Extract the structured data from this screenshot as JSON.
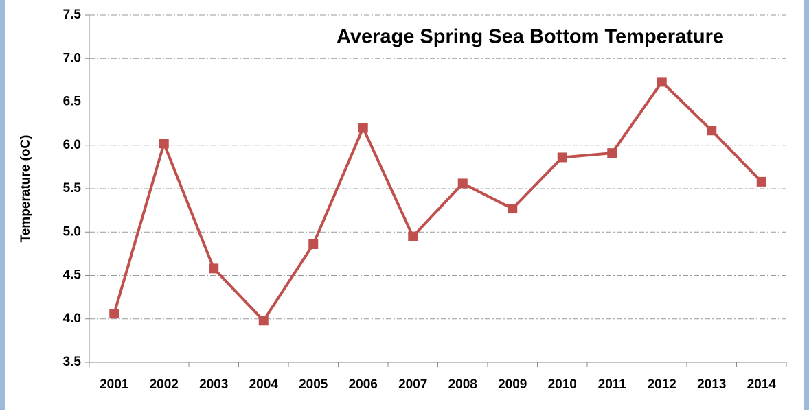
{
  "chart_data": {
    "type": "line",
    "title": "Average Spring Sea Bottom Temperature",
    "y_label": "Temperature (oC)",
    "categories": [
      "2001",
      "2002",
      "2003",
      "2004",
      "2005",
      "2006",
      "2007",
      "2008",
      "2009",
      "2010",
      "2011",
      "2012",
      "2013",
      "2014"
    ],
    "series": [
      {
        "name": "Average Spring Sea Bottom Temperature",
        "color": "#c0504d",
        "values": [
          4.06,
          6.02,
          4.58,
          3.98,
          4.86,
          6.2,
          4.95,
          5.56,
          5.27,
          5.86,
          5.91,
          6.73,
          6.17,
          5.58
        ]
      }
    ],
    "ylim": [
      3.5,
      7.5
    ],
    "yticks": [
      3.5,
      {
        "value": 4,
        "label": "4.0"
      },
      4.5,
      {
        "value": 5,
        "label": "5.0"
      },
      5.5,
      {
        "value": 6,
        "label": "6.0"
      },
      6.5,
      {
        "value": 7,
        "label": "7.0"
      },
      7.5
    ],
    "grid": true
  }
}
